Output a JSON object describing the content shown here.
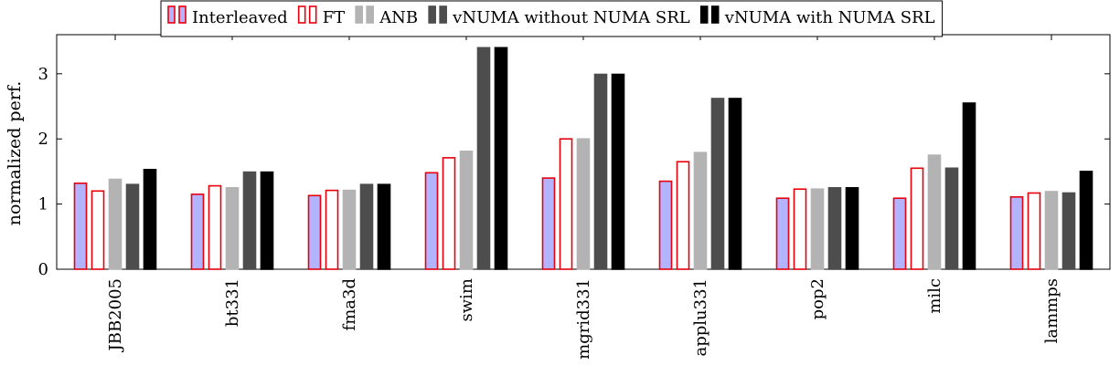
{
  "chart_data": {
    "type": "bar",
    "title": "",
    "xlabel": "",
    "ylabel": "normalized perf.",
    "ylim": [
      0,
      3.6
    ],
    "yticks": [
      0,
      1,
      2,
      3
    ],
    "grid": false,
    "legend_position": "top",
    "categories": [
      "JBB2005",
      "bt331",
      "fma3d",
      "swim",
      "mgrid331",
      "applu331",
      "pop2",
      "milc",
      "lammps"
    ],
    "series": [
      {
        "name": "Interleaved",
        "fill": "#b3b3ff",
        "stroke": "#e8000b",
        "values": [
          1.32,
          1.15,
          1.13,
          1.48,
          1.4,
          1.35,
          1.09,
          1.09,
          1.11
        ]
      },
      {
        "name": "FT",
        "fill": "#ffffff",
        "stroke": "#e8000b",
        "values": [
          1.2,
          1.28,
          1.21,
          1.71,
          2.0,
          1.65,
          1.23,
          1.55,
          1.17
        ]
      },
      {
        "name": "ANB",
        "fill": "#b3b3b3",
        "stroke": "#b3b3b3",
        "values": [
          1.38,
          1.25,
          1.21,
          1.81,
          2.0,
          1.79,
          1.23,
          1.75,
          1.19
        ]
      },
      {
        "name": "vNUMA without NUMA SRL",
        "fill": "#4d4d4d",
        "stroke": "#4d4d4d",
        "values": [
          1.3,
          1.49,
          1.3,
          3.4,
          2.99,
          2.62,
          1.25,
          1.55,
          1.17
        ]
      },
      {
        "name": "vNUMA with NUMA SRL",
        "fill": "#000000",
        "stroke": "#000000",
        "values": [
          1.53,
          1.49,
          1.3,
          3.4,
          2.99,
          2.62,
          1.25,
          2.55,
          1.5
        ]
      }
    ]
  }
}
